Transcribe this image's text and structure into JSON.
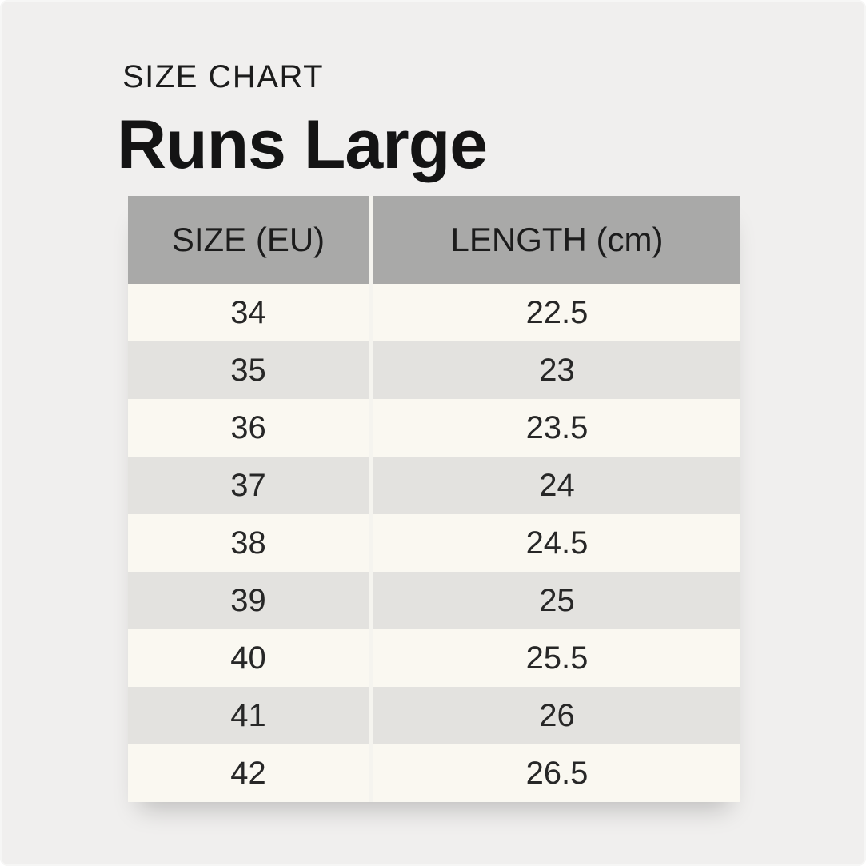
{
  "page": {
    "eyebrow": "SIZE CHART",
    "title": "Runs Large"
  },
  "chart_data": {
    "type": "table",
    "subtitle": "SIZE CHART",
    "title": "Runs Large",
    "columns": [
      "SIZE (EU)",
      "LENGTH (cm)"
    ],
    "rows": [
      [
        "34",
        "22.5"
      ],
      [
        "35",
        "23"
      ],
      [
        "36",
        "23.5"
      ],
      [
        "37",
        "24"
      ],
      [
        "38",
        "24.5"
      ],
      [
        "39",
        "25"
      ],
      [
        "40",
        "25.5"
      ],
      [
        "41",
        "26"
      ],
      [
        "42",
        "26.5"
      ]
    ]
  },
  "colors": {
    "background": "#f0efee",
    "header_background": "#a9a9a8",
    "row_cream": "#faf8f1",
    "row_gray": "#e3e2df",
    "text": "#1c1c1c"
  }
}
